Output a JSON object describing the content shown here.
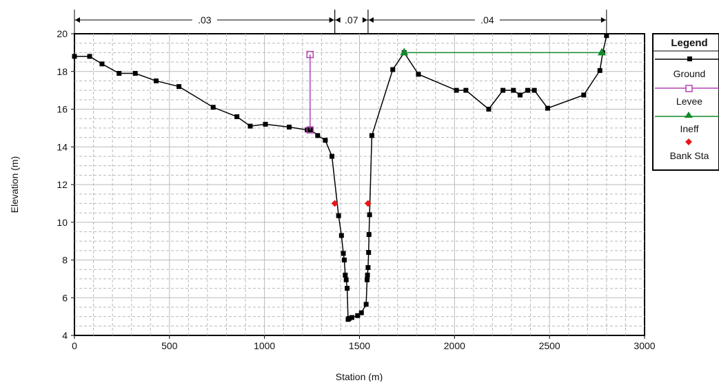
{
  "chart_data": {
    "type": "line",
    "xlabel": "Station (m)",
    "ylabel": "Elevation (m)",
    "xlim": [
      0,
      3000
    ],
    "ylim": [
      4,
      20
    ],
    "x_ticks": [
      "0",
      "500",
      "1000",
      "1500",
      "2000",
      "2500",
      "3000"
    ],
    "y_ticks": [
      "4",
      "6",
      "8",
      "10",
      "12",
      "14",
      "16",
      "18",
      "20"
    ],
    "grid": true,
    "legend_position": "right",
    "legend": {
      "title": "Legend",
      "items": [
        "Ground",
        "Levee",
        "Ineff",
        "Bank Sta"
      ]
    },
    "colors": {
      "ground": "#000000",
      "levee": "#b040b0",
      "ineff": "#128a2c",
      "bank": "#e81818",
      "grid": "#b8b8b8"
    },
    "roughness": [
      {
        "label": ".03",
        "from": 0,
        "to": 1370
      },
      {
        "label": ".07",
        "from": 1370,
        "to": 1545
      },
      {
        "label": ".04",
        "from": 1545,
        "to": 2800
      }
    ],
    "series": [
      {
        "name": "Ground",
        "x": [
          0,
          80,
          145,
          235,
          320,
          430,
          550,
          730,
          855,
          925,
          1005,
          1130,
          1225,
          1245,
          1280,
          1320,
          1355,
          1390,
          1405,
          1415,
          1420,
          1425,
          1430,
          1435,
          1440,
          1445,
          1460,
          1490,
          1510,
          1535,
          1540,
          1542,
          1545,
          1548,
          1550,
          1553,
          1565,
          1675,
          1735,
          1810,
          2010,
          2060,
          2180,
          2255,
          2310,
          2345,
          2385,
          2420,
          2490,
          2680,
          2765,
          2780,
          2800
        ],
        "y": [
          18.8,
          18.8,
          18.4,
          17.9,
          17.9,
          17.5,
          17.2,
          16.1,
          15.6,
          15.1,
          15.2,
          15.05,
          14.9,
          14.9,
          14.6,
          14.35,
          13.5,
          10.35,
          9.3,
          8.35,
          8.0,
          7.2,
          6.95,
          6.5,
          4.85,
          4.9,
          4.95,
          5.05,
          5.2,
          5.65,
          6.95,
          7.2,
          7.6,
          8.4,
          9.35,
          10.4,
          14.6,
          18.1,
          19.0,
          17.85,
          17.0,
          17.0,
          16.0,
          17.0,
          17.0,
          16.75,
          17.0,
          17.0,
          16.05,
          16.75,
          18.05,
          19.0,
          19.9
        ]
      },
      {
        "name": "Levee",
        "x": [
          1240,
          1240
        ],
        "y": [
          18.9,
          14.9
        ]
      },
      {
        "name": "Ineff",
        "x": [
          1735,
          2775
        ],
        "y": [
          19.0,
          19.0
        ]
      },
      {
        "name": "Bank Sta",
        "x": [
          1370,
          1545
        ],
        "y": [
          11.0,
          11.0
        ]
      }
    ]
  }
}
